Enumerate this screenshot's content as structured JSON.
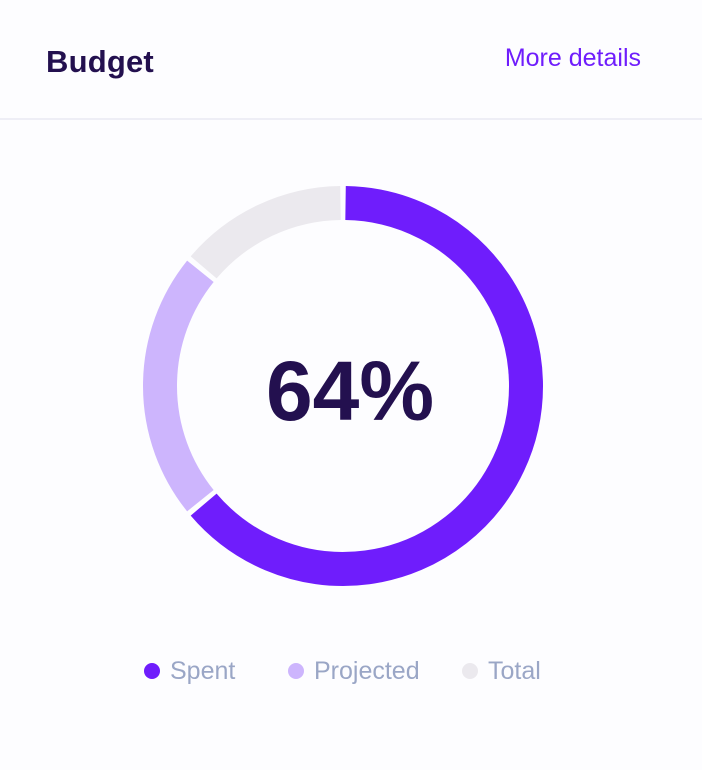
{
  "header": {
    "title": "Budget",
    "link_label": "More details"
  },
  "colors": {
    "spent": "#6f1dfc",
    "projected": "#cdb5fd",
    "total": "#ebe9ee",
    "title": "#23104f",
    "legend_text": "#9aa6c6"
  },
  "chart_data": {
    "type": "pie",
    "style": "donut",
    "center_label": "64%",
    "slices": [
      {
        "name": "Spent",
        "value": 64,
        "color": "#6f1dfc"
      },
      {
        "name": "Projected",
        "value": 22,
        "color": "#cdb5fd"
      },
      {
        "name": "Total",
        "value": 14,
        "color": "#ebe9ee"
      }
    ],
    "legend": [
      "Spent",
      "Projected",
      "Total"
    ],
    "legend_position": "bottom"
  }
}
